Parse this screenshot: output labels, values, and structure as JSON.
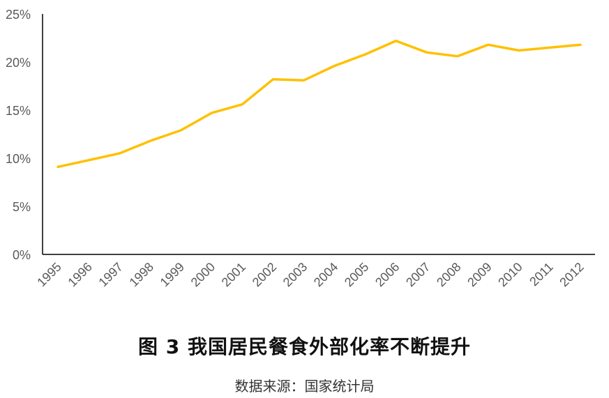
{
  "chart_data": {
    "type": "line",
    "title": "图 3 我国居民餐食外部化率不断提升",
    "subtitle": "数据来源：国家统计局",
    "xlabel": "",
    "ylabel": "",
    "categories": [
      "1995",
      "1996",
      "1997",
      "1998",
      "1999",
      "2000",
      "2001",
      "2002",
      "2003",
      "2004",
      "2005",
      "2006",
      "2007",
      "2008",
      "2009",
      "2010",
      "2011",
      "2012"
    ],
    "series": [
      {
        "name": "餐食外部化率",
        "color": "#FFC000",
        "values": [
          9.1,
          9.8,
          10.5,
          11.8,
          12.9,
          14.7,
          15.6,
          18.2,
          18.1,
          19.6,
          20.8,
          22.2,
          21.0,
          20.6,
          21.8,
          21.2,
          21.5,
          21.8
        ]
      }
    ],
    "ylim": [
      0,
      25
    ],
    "yticks": [
      "0%",
      "5%",
      "10%",
      "15%",
      "20%",
      "25%"
    ],
    "ytick_values": [
      0,
      5,
      10,
      15,
      20,
      25
    ],
    "grid": false,
    "legend": "none"
  },
  "caption": {
    "title": "图 3 我国居民餐食外部化率不断提升",
    "source": "数据来源：国家统计局"
  },
  "colors": {
    "line": "#FFC000",
    "axis": "#000000",
    "tick_text": "#595959"
  }
}
